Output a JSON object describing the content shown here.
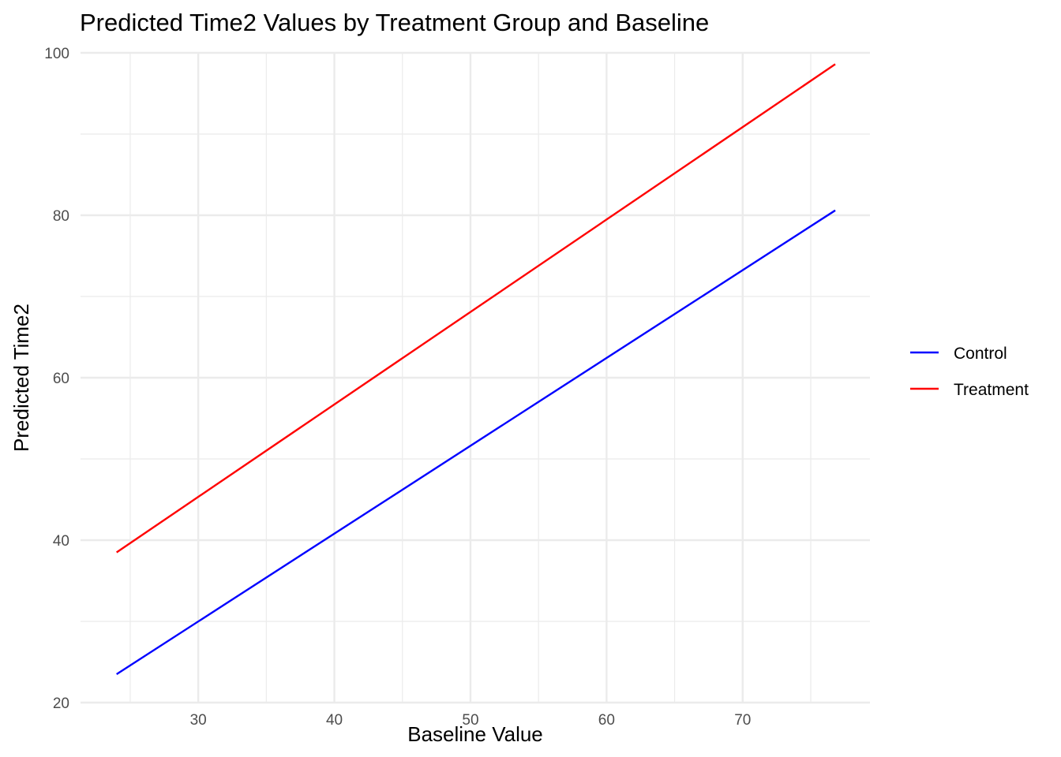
{
  "chart_data": {
    "type": "line",
    "title": "Predicted Time2 Values by Treatment Group and Baseline",
    "xlabel": "Baseline Value",
    "ylabel": "Predicted Time2",
    "xlim": [
      21.35,
      79.35
    ],
    "ylim": [
      20,
      100
    ],
    "x_ticks": [
      30,
      40,
      50,
      60,
      70
    ],
    "x_minor_ticks": [
      25,
      35,
      45,
      55,
      65,
      75
    ],
    "y_ticks": [
      20,
      40,
      60,
      80,
      100
    ],
    "y_minor_ticks": [
      30,
      50,
      70,
      90
    ],
    "grid": true,
    "legend_position": "right",
    "series": [
      {
        "name": "Control",
        "color": "#0000ff",
        "x": [
          24,
          76.8
        ],
        "y": [
          23.5,
          80.6
        ]
      },
      {
        "name": "Treatment",
        "color": "#ff0000",
        "x": [
          24,
          76.8
        ],
        "y": [
          38.5,
          98.6
        ]
      }
    ]
  }
}
